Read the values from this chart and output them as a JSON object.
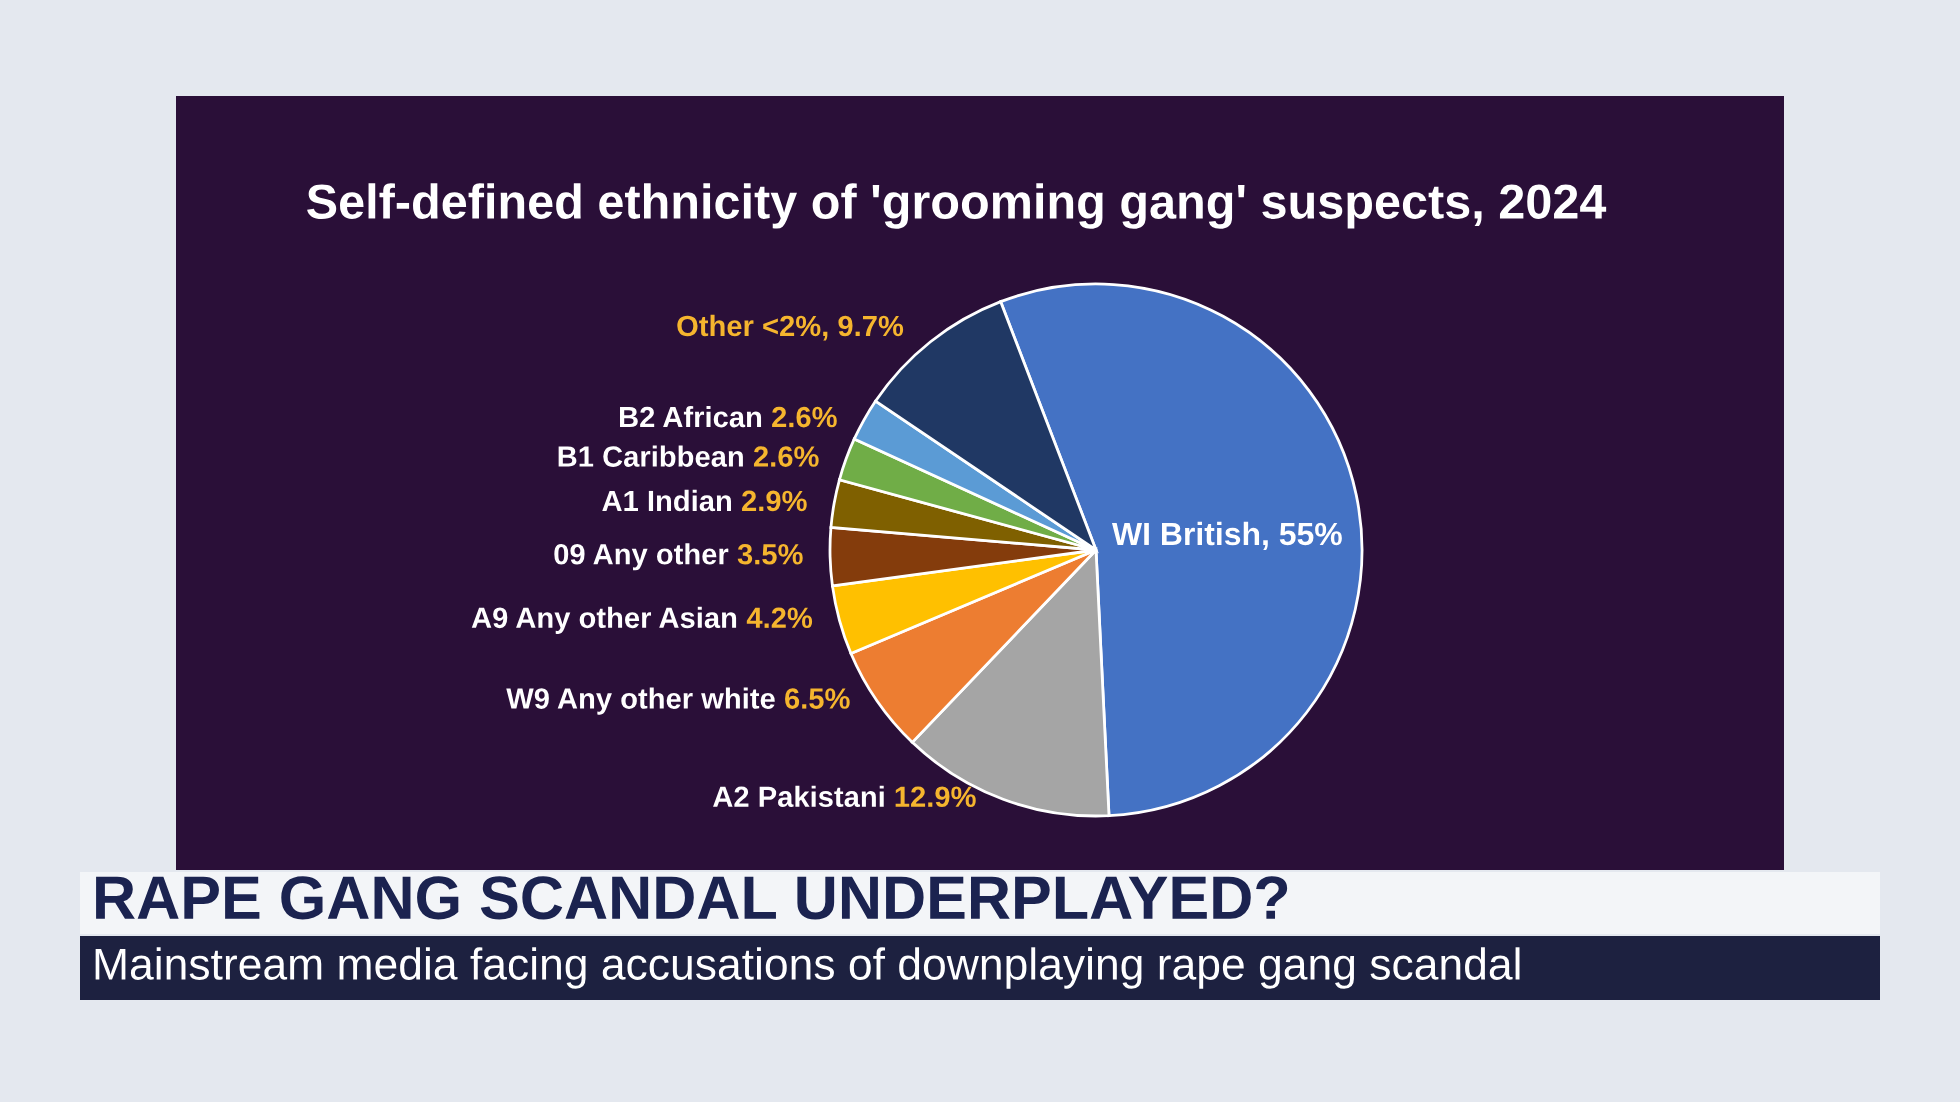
{
  "chart_data": {
    "type": "pie",
    "title": "Self-defined ethnicity of 'grooming gang' suspects, 2024",
    "categories": [
      "WI British",
      "A2 Pakistani",
      "W9 Any other white",
      "A9 Any other Asian",
      "09 Any other",
      "A1 Indian",
      "B1 Caribbean",
      "B2 African",
      "Other <2%"
    ],
    "values": [
      55,
      12.9,
      6.5,
      4.2,
      3.5,
      2.9,
      2.6,
      2.6,
      9.7
    ],
    "value_labels": [
      "55%",
      "12.9%",
      "6.5%",
      "4.2%",
      "3.5%",
      "2.9%",
      "2.6%",
      "2.6%",
      "9.7%"
    ],
    "colors": [
      "#4472c4",
      "#a5a5a5",
      "#ed7d31",
      "#ffc000",
      "#843c0c",
      "#7f6000",
      "#70ad47",
      "#5b9bd5",
      "#203864"
    ],
    "annotations": [
      "RAPE GANG SCANDAL UNDERPLAYED?",
      "Mainstream media facing accusations of downplaying rape gang scandal"
    ]
  }
}
